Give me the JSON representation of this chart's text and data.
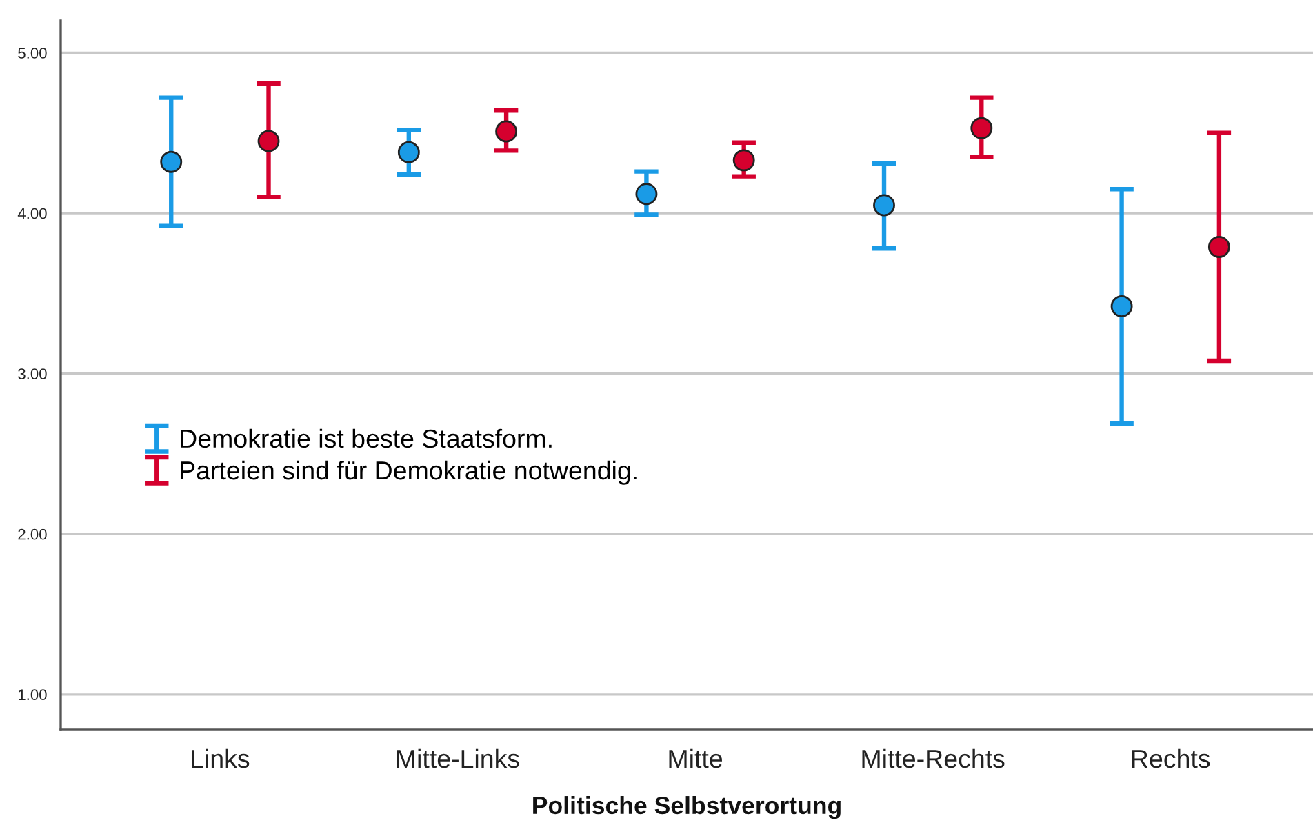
{
  "chart_data": {
    "type": "scatter",
    "xlabel": "Politische Selbstverortung",
    "categories": [
      "Links",
      "Mitte-Links",
      "Mitte",
      "Mitte-Rechts",
      "Rechts"
    ],
    "series": [
      {
        "name": "Demokratie ist beste Staatsform.",
        "color": "#1a9be6",
        "values": [
          4.32,
          4.38,
          4.12,
          4.05,
          3.42
        ],
        "errors": [
          [
            3.92,
            4.72
          ],
          [
            4.24,
            4.52
          ],
          [
            3.99,
            4.26
          ],
          [
            3.78,
            4.31
          ],
          [
            2.69,
            4.15
          ]
        ]
      },
      {
        "name": "Parteien sind für Demokratie notwendig.",
        "color": "#d5002e",
        "values": [
          4.45,
          4.51,
          4.33,
          4.53,
          3.79
        ],
        "errors": [
          [
            4.1,
            4.81
          ],
          [
            4.39,
            4.64
          ],
          [
            4.23,
            4.44
          ],
          [
            4.35,
            4.72
          ],
          [
            3.08,
            4.5
          ]
        ]
      }
    ],
    "ylim": [
      0.78,
      5.2
    ],
    "yticks": [
      {
        "value": 1,
        "label": "1.00"
      },
      {
        "value": 2,
        "label": "2.00"
      },
      {
        "value": 3,
        "label": "3.00"
      },
      {
        "value": 4,
        "label": "4.00"
      },
      {
        "value": 5,
        "label": "5.00"
      }
    ],
    "grid": "y",
    "legend": "left",
    "marker": "circle"
  }
}
